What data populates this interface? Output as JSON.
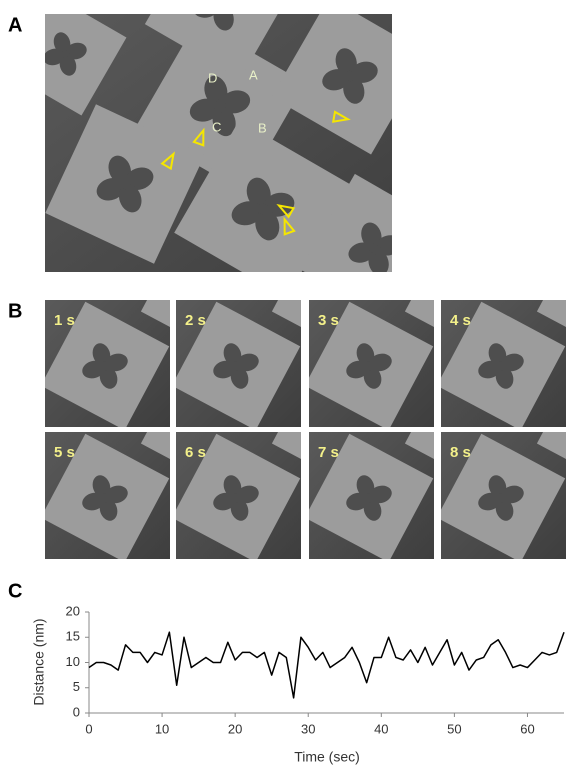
{
  "panels": {
    "a": {
      "label": "A",
      "letters": [
        "D",
        "A",
        "C",
        "B"
      ]
    },
    "b": {
      "label": "B",
      "frames": [
        "1 s",
        "2 s",
        "3 s",
        "4 s",
        "5 s",
        "6 s",
        "7 s",
        "8 s"
      ]
    },
    "c": {
      "label": "C"
    }
  },
  "chart_data": {
    "type": "line",
    "x_label": "Time (sec)",
    "y_label": "Distance (nm)",
    "x": [
      0,
      1,
      2,
      3,
      4,
      5,
      6,
      7,
      8,
      9,
      10,
      11,
      12,
      13,
      14,
      15,
      16,
      17,
      18,
      19,
      20,
      21,
      22,
      23,
      24,
      25,
      26,
      27,
      28,
      29,
      30,
      31,
      32,
      33,
      34,
      35,
      36,
      37,
      38,
      39,
      40,
      41,
      42,
      43,
      44,
      45,
      46,
      47,
      48,
      49,
      50,
      51,
      52,
      53,
      54,
      55,
      56,
      57,
      58,
      59,
      60,
      61,
      62,
      63,
      64,
      65
    ],
    "values": [
      9,
      10,
      10,
      9.5,
      8.5,
      13.5,
      12,
      12,
      10,
      12,
      11.5,
      16,
      5.5,
      15,
      9,
      10,
      11,
      10,
      10,
      14,
      10.5,
      12,
      12,
      11,
      12,
      7.5,
      12,
      11,
      3,
      15,
      13,
      10.5,
      12,
      9,
      10,
      11,
      13,
      10,
      6,
      11,
      11,
      15,
      11,
      10.5,
      12.5,
      10,
      13,
      9.5,
      12,
      14.5,
      9.5,
      12,
      8.5,
      10.5,
      11,
      13.5,
      14.5,
      12,
      9,
      9.5,
      9,
      10.5,
      12,
      11.5,
      12,
      16
    ],
    "color": "#000000",
    "xlim": [
      0,
      65
    ],
    "xticks": [
      0,
      10,
      20,
      30,
      40,
      50,
      60
    ],
    "ylim": [
      0,
      20
    ],
    "yticks": [
      0,
      5,
      10,
      15,
      20
    ]
  }
}
